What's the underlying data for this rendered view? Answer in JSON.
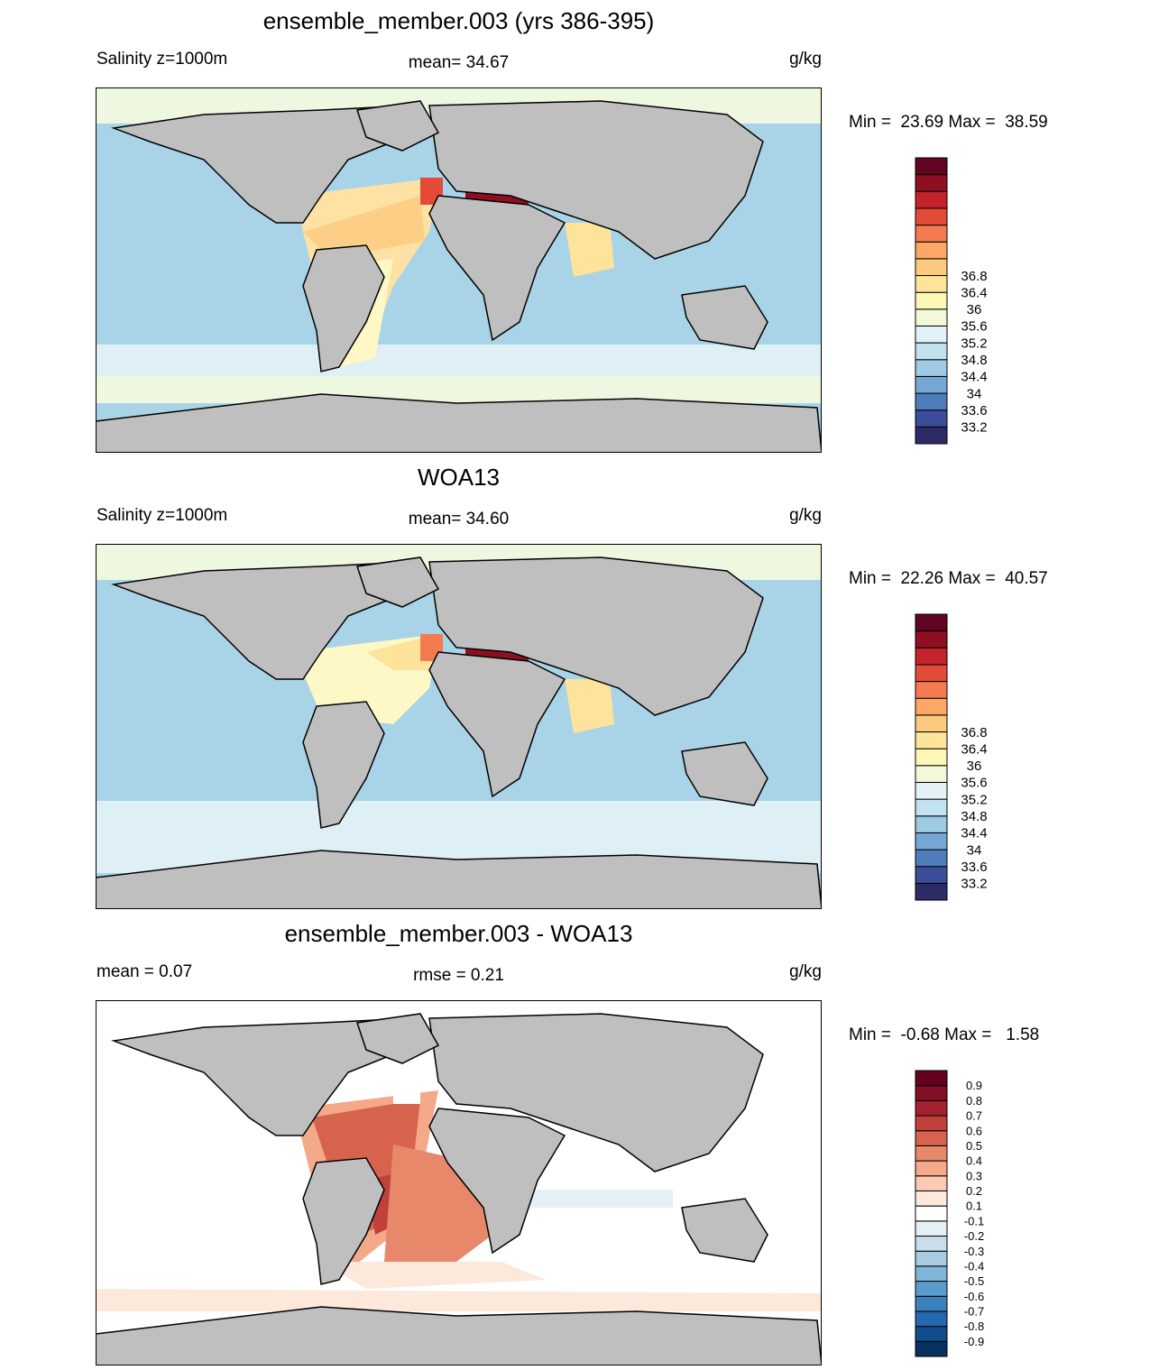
{
  "panels": [
    {
      "id": "model",
      "title": "ensemble_member.003 (yrs 386-395)",
      "left_string": "Salinity z=1000m",
      "center_string": "mean=  34.67",
      "right_string": "g/kg",
      "minmax": "Min =  23.69 Max =  38.59"
    },
    {
      "id": "obs",
      "title": "WOA13",
      "left_string": "Salinity z=1000m",
      "center_string": "mean=  34.60",
      "right_string": "g/kg",
      "minmax": "Min =  22.26 Max =  40.57"
    },
    {
      "id": "diff",
      "title": "ensemble_member.003 - WOA13",
      "left_string": "mean =   0.07",
      "center_string": "rmse =   0.21",
      "right_string": "g/kg",
      "minmax": "Min =  -0.68 Max =   1.58"
    }
  ],
  "colorbars": {
    "salinity": {
      "labels": [
        "33.2",
        "33.6",
        "34",
        "34.4",
        "34.8",
        "35.2",
        "35.6",
        "36",
        "36.4",
        "36.8"
      ],
      "colors": [
        "#2d2a68",
        "#3b4d9a",
        "#4f7cbd",
        "#74a7d3",
        "#9ecae4",
        "#c3e2ef",
        "#e2f2f6",
        "#f3f9d8",
        "#fdf7b6",
        "#fde49a",
        "#fdc97e",
        "#fca765",
        "#f47b4f",
        "#e34a38",
        "#c4232b",
        "#8e1020",
        "#620523"
      ]
    },
    "difference": {
      "labels": [
        "-0.9",
        "-0.8",
        "-0.7",
        "-0.6",
        "-0.5",
        "-0.4",
        "-0.3",
        "-0.2",
        "-0.1",
        "0.1",
        "0.2",
        "0.3",
        "0.4",
        "0.5",
        "0.6",
        "0.7",
        "0.8",
        "0.9"
      ],
      "colors": [
        "#08315f",
        "#0f4d8c",
        "#2468ae",
        "#3b82bd",
        "#5b9ccb",
        "#82b6d8",
        "#a6cbe2",
        "#c8deec",
        "#e4eff6",
        "#ffffff",
        "#fde9dc",
        "#f9cbb2",
        "#f3a98a",
        "#e8886b",
        "#d7634f",
        "#c0403b",
        "#a42230",
        "#810f25",
        "#650021"
      ]
    }
  },
  "map_colors": {
    "land": "#bfbfbf",
    "coast": "#000000"
  }
}
